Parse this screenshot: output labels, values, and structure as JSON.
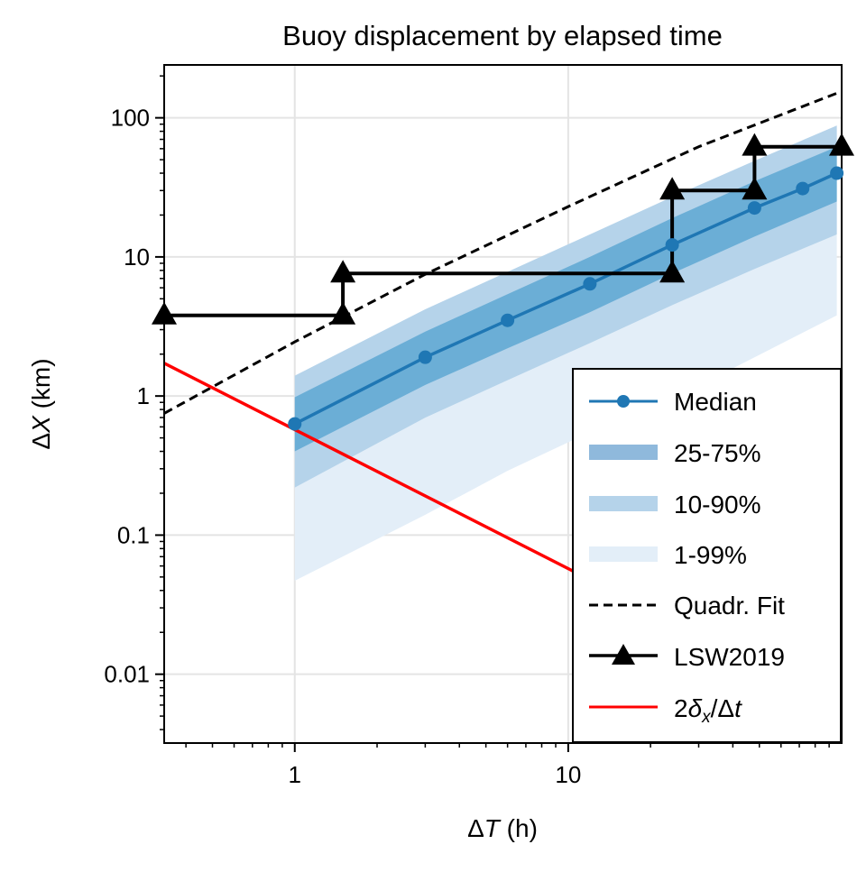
{
  "chart_data": {
    "type": "line",
    "title": "Buoy displacement by elapsed time",
    "xlabel": {
      "symbol": "Δ",
      "var": "T",
      "unit": " (h)"
    },
    "ylabel": {
      "symbol": "Δ",
      "var": "X",
      "unit": " (km)"
    },
    "x_scale": "log",
    "y_scale": "log",
    "xlim": [
      0.333,
      100
    ],
    "ylim": [
      0.0032,
      240
    ],
    "x_ticks": [
      {
        "value": 1,
        "label": "1"
      },
      {
        "value": 10,
        "label": "10"
      }
    ],
    "y_ticks": [
      {
        "value": 0.01,
        "label": "0.01"
      },
      {
        "value": 0.1,
        "label": "0.1"
      },
      {
        "value": 1,
        "label": "1"
      },
      {
        "value": 10,
        "label": "10"
      },
      {
        "value": 100,
        "label": "100"
      }
    ],
    "grid": true,
    "legend_position": "lower-right",
    "colors": {
      "median": "#1f77b4",
      "band_25_75": "#6baed6",
      "band_10_90": "#b5d3ea",
      "band_1_99": "#e3eef8",
      "quadr_fit": "#000000",
      "lsw": "#000000",
      "error": "#ff0000"
    },
    "series": [
      {
        "name": "Median",
        "kind": "line-marker",
        "x": [
          1,
          3,
          6,
          12,
          24,
          48,
          72,
          96
        ],
        "y": [
          0.63,
          1.9,
          3.5,
          6.4,
          12.2,
          22.5,
          31,
          40
        ]
      },
      {
        "name": "25-75%",
        "kind": "band",
        "x": [
          1,
          3,
          6,
          12,
          24,
          48,
          96
        ],
        "lower": [
          0.4,
          1.2,
          2.2,
          4.0,
          7.6,
          14.0,
          25.0
        ],
        "upper": [
          0.98,
          2.9,
          5.4,
          10.0,
          19.0,
          35.0,
          62.0
        ]
      },
      {
        "name": "10-90%",
        "kind": "band",
        "x": [
          1,
          3,
          6,
          12,
          24,
          48,
          96
        ],
        "lower": [
          0.22,
          0.7,
          1.3,
          2.4,
          4.5,
          8.2,
          14.5
        ],
        "upper": [
          1.4,
          4.2,
          7.8,
          14.5,
          27.0,
          49.0,
          88.0
        ]
      },
      {
        "name": "1-99%",
        "kind": "band",
        "x": [
          1,
          3,
          6,
          12,
          24,
          48,
          96
        ],
        "lower": [
          0.047,
          0.14,
          0.29,
          0.55,
          0.95,
          1.9,
          3.8
        ],
        "upper": [
          1.4,
          4.2,
          7.8,
          14.5,
          27.0,
          49.0,
          88.0
        ]
      },
      {
        "name": "Quadr. Fit",
        "kind": "dashed-line",
        "x": [
          0.333,
          1,
          3,
          10,
          30,
          100
        ],
        "y": [
          0.75,
          2.45,
          7.5,
          23.0,
          62.0,
          155.0
        ]
      },
      {
        "name": "LSW2019",
        "kind": "step-marker",
        "x": [
          0.333,
          1.5,
          1.5,
          24,
          24,
          48,
          48,
          100
        ],
        "y": [
          3.8,
          3.8,
          7.6,
          7.6,
          30.0,
          30.0,
          62.0,
          62.0
        ]
      },
      {
        "name": "2δx/Δt",
        "label": {
          "pre": "2",
          "sym": "δ",
          "sub": "x",
          "mid": "/Δ",
          "var": "t"
        },
        "kind": "line",
        "x": [
          0.333,
          100
        ],
        "y": [
          1.72,
          0.00575
        ]
      }
    ]
  }
}
